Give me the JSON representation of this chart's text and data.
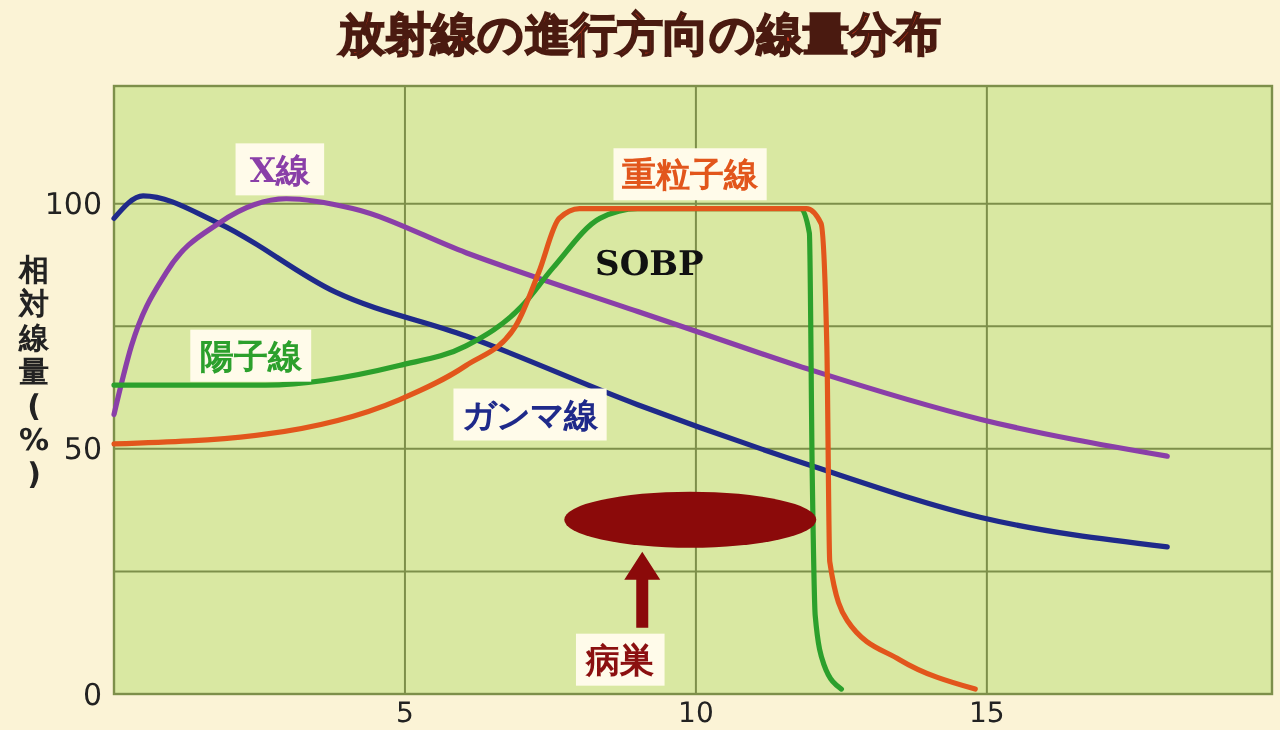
{
  "chart_data": {
    "type": "line",
    "title": "放射線の進行方向の線量分布",
    "ylabel": "相対線量(%)",
    "xlim": [
      0,
      19.9
    ],
    "xticks": [
      5,
      10,
      15
    ],
    "ylim": [
      0,
      124
    ],
    "yticks": [
      0,
      {
        "value": 25,
        "label": null
      },
      50,
      {
        "value": 75,
        "label": null
      },
      100
    ],
    "grid": true,
    "marker": "none",
    "line_style": "solid",
    "series": [
      {
        "name": "ガンマ線",
        "color": "#1f2a8a",
        "x": [
          0,
          0.5,
          1.8,
          3.8,
          6.05,
          9.0,
          12.0,
          14.9,
          18.1
        ],
        "values": [
          97,
          101.6,
          96,
          82,
          73,
          59,
          46.5,
          36,
          30
        ]
      },
      {
        "name": "X線",
        "color": "#8a3fa8",
        "x": [
          0,
          0.3,
          0.9,
          1.8,
          2.96,
          4.1,
          6.05,
          9.0,
          10,
          12,
          14.9,
          18.1
        ],
        "values": [
          57,
          71,
          86,
          96,
          101,
          99,
          90,
          78,
          74,
          66,
          56,
          48.5
        ]
      },
      {
        "name": "陽子線",
        "color": "#2ca02c",
        "x": [
          0,
          2.6,
          4.9,
          6.05,
          7.0,
          7.55,
          8.35,
          9.0,
          11.8,
          11.95,
          12.0,
          12.05,
          12.2,
          12.5
        ],
        "values": [
          63,
          63,
          67,
          71,
          79,
          87,
          97,
          99,
          99,
          94,
          44,
          16,
          6,
          1
        ]
      },
      {
        "name": "重粒子線",
        "color": "#e2561c",
        "x": [
          0,
          2.6,
          4.9,
          6.05,
          6.9,
          7.3,
          7.65,
          8.0,
          11.9,
          12.15,
          12.25,
          12.3,
          12.6,
          13.5,
          14.8
        ],
        "values": [
          51,
          53,
          60,
          67,
          75,
          86,
          97,
          99,
          99,
          96,
          71,
          27,
          15,
          7,
          1
        ]
      }
    ],
    "annotations": [
      "SOBP",
      "病巣"
    ]
  }
}
